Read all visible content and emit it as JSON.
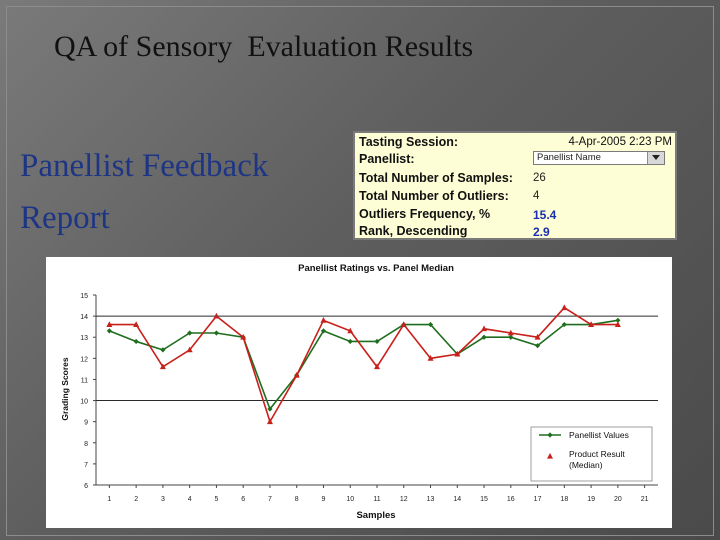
{
  "slide": {
    "title": "QA of Sensory  Evaluation Results",
    "subtitle_line1": "Panellist Feedback",
    "subtitle_line2": "Report"
  },
  "info_panel": {
    "tasting_session_label": "Tasting Session:",
    "tasting_session_value": "4-Apr-2005 2:23 PM",
    "panellist_label": "Panellist:",
    "panellist_select_value": "Panellist Name",
    "total_samples_label": "Total Number of Samples:",
    "total_samples_value": "26",
    "total_outliers_label": "Total Number of Outliers:",
    "total_outliers_value": "4",
    "outliers_freq_label": "Outliers Frequency, %",
    "outliers_freq_value": "15.4",
    "rank_label": "Rank, Descending",
    "rank_value": "2.9"
  },
  "colors": {
    "panellist_series": "#1e6e1e",
    "product_series": "#c8201a",
    "reference_line": "#2a2a2a",
    "value_blue": "#1a2fb0"
  },
  "chart_data": {
    "type": "line",
    "title": "Panellist Ratings vs. Panel Median",
    "xlabel": "Samples",
    "ylabel": "Grading Scores",
    "x": [
      1,
      2,
      3,
      4,
      5,
      6,
      7,
      8,
      9,
      10,
      11,
      12,
      13,
      14,
      15,
      16,
      17,
      18,
      19,
      20
    ],
    "x_ticks": [
      "1",
      "2",
      "3",
      "4",
      "5",
      "6",
      "7",
      "8",
      "9",
      "10",
      "11",
      "12",
      "13",
      "14",
      "15",
      "16",
      "17",
      "18",
      "19",
      "20",
      "21"
    ],
    "y_ticks": [
      "6",
      "7",
      "8",
      "9",
      "10",
      "11",
      "12",
      "13",
      "14",
      "15"
    ],
    "ylim": [
      6,
      15
    ],
    "xlim": [
      0.5,
      21.5
    ],
    "reference_lines_y": [
      14,
      10
    ],
    "grid": false,
    "legend_position": "bottom-right",
    "series": [
      {
        "name": "Panellist Values",
        "marker": "diamond",
        "values": [
          13.3,
          12.8,
          12.4,
          13.2,
          13.2,
          13.0,
          9.6,
          11.2,
          13.3,
          12.8,
          12.8,
          13.6,
          13.6,
          12.2,
          13.0,
          13.0,
          12.6,
          13.6,
          13.6,
          13.8
        ]
      },
      {
        "name": "Product Result (Median)",
        "legend_lines": [
          "Product Result",
          "(Median)"
        ],
        "marker": "triangle",
        "values": [
          13.6,
          13.6,
          11.6,
          12.4,
          14.0,
          13.0,
          9.0,
          11.2,
          13.8,
          13.3,
          11.6,
          13.6,
          12.0,
          12.2,
          13.4,
          13.2,
          13.0,
          14.4,
          13.6,
          13.6
        ]
      }
    ]
  }
}
